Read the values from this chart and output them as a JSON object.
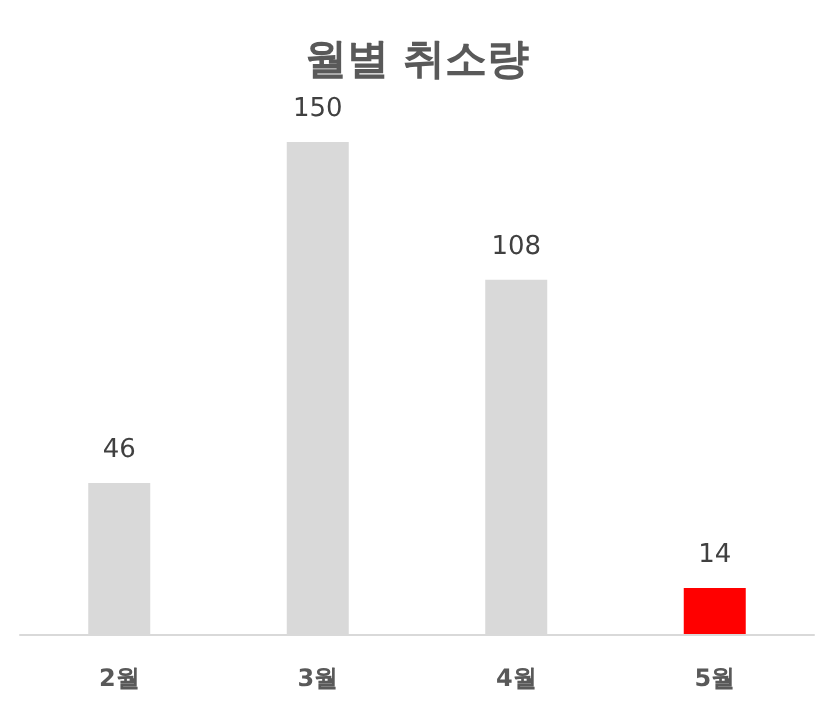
{
  "chart_data": {
    "type": "bar",
    "title": "월별 취소량",
    "categories": [
      "2월",
      "3월",
      "4월",
      "5월"
    ],
    "values": [
      46,
      150,
      108,
      14
    ],
    "colors": [
      "#d9d9d9",
      "#d9d9d9",
      "#d9d9d9",
      "#ff0000"
    ],
    "data_labels": true
  }
}
